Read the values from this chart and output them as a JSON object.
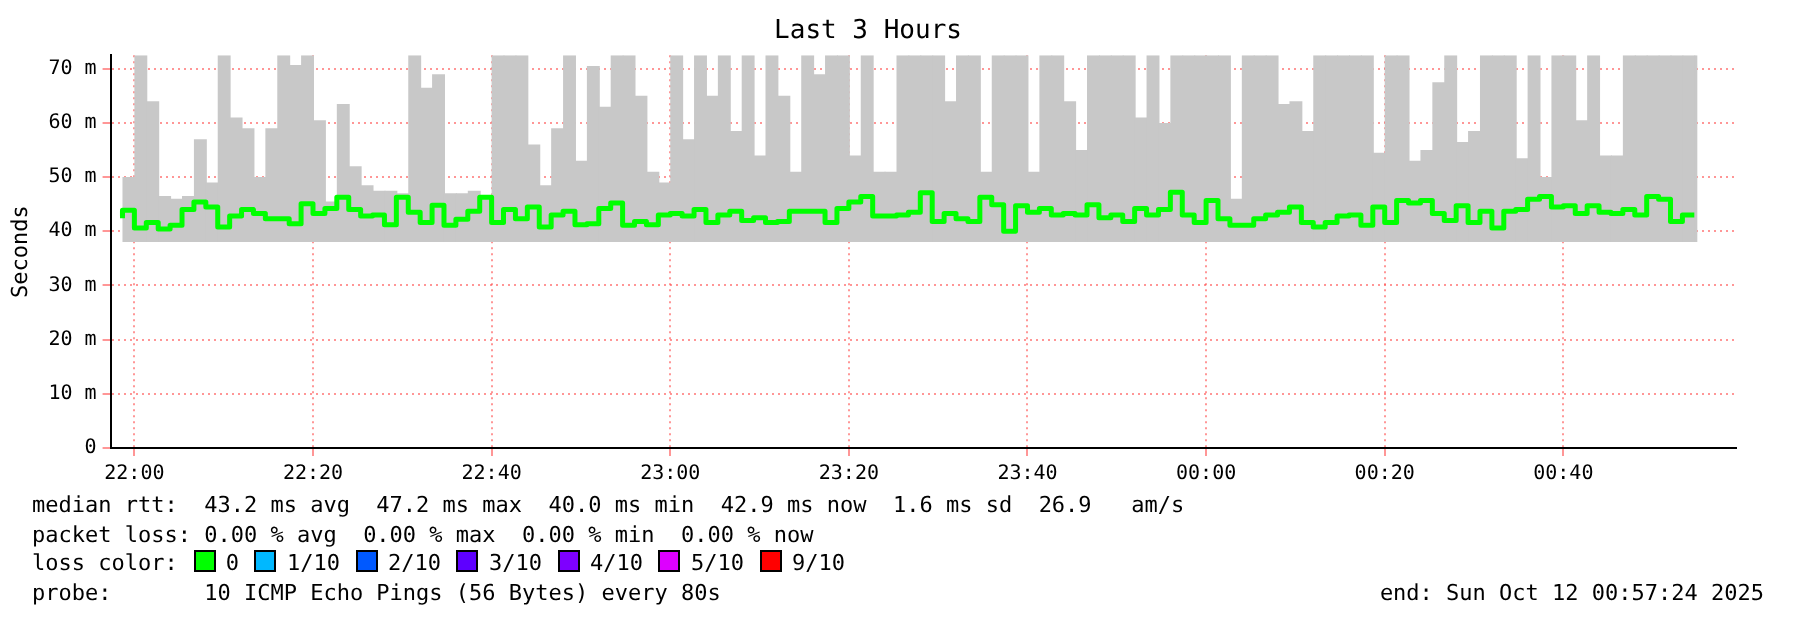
{
  "chart_data": {
    "type": "step",
    "title": "Last 3 Hours",
    "ylabel": "Seconds",
    "legend_title": "loss color:",
    "legend": "bottom",
    "grid": true,
    "xlim": [
      "2025-10-11T21:57:20",
      "2025-10-12T00:59:20"
    ],
    "xticks": [
      {
        "value": "2025-10-11T22:00",
        "label": "22:00"
      },
      {
        "value": "2025-10-11T22:20",
        "label": "22:20"
      },
      {
        "value": "2025-10-11T22:40",
        "label": "22:40"
      },
      {
        "value": "2025-10-11T23:00",
        "label": "23:00"
      },
      {
        "value": "2025-10-11T23:20",
        "label": "23:20"
      },
      {
        "value": "2025-10-11T23:40",
        "label": "23:40"
      },
      {
        "value": "2025-10-12T00:00",
        "label": "00:00"
      },
      {
        "value": "2025-10-12T00:20",
        "label": "00:20"
      },
      {
        "value": "2025-10-12T00:40",
        "label": "00:40"
      }
    ],
    "ylim": [
      0,
      72.5
    ],
    "yticks": [
      0,
      {
        "value": 10,
        "label": "10 m"
      },
      {
        "value": 20,
        "label": "20 m"
      },
      {
        "value": 30,
        "label": "30 m"
      },
      {
        "value": 40,
        "label": "40 m"
      },
      {
        "value": 50,
        "label": "50 m"
      },
      {
        "value": 60,
        "label": "60 m"
      },
      {
        "value": 70,
        "label": "70 m"
      }
    ],
    "x": [
      "2025-10-11T21:58:40",
      "2025-10-11T22:00:00",
      "2025-10-11T22:01:20",
      "2025-10-11T22:02:40",
      "2025-10-11T22:04:00",
      "2025-10-11T22:05:20",
      "2025-10-11T22:06:40",
      "2025-10-11T22:08:00",
      "2025-10-11T22:09:20",
      "2025-10-11T22:10:40",
      "2025-10-11T22:12:00",
      "2025-10-11T22:13:20",
      "2025-10-11T22:14:40",
      "2025-10-11T22:16:00",
      "2025-10-11T22:17:20",
      "2025-10-11T22:18:40",
      "2025-10-11T22:20:00",
      "2025-10-11T22:21:20",
      "2025-10-11T22:22:40",
      "2025-10-11T22:24:00",
      "2025-10-11T22:25:20",
      "2025-10-11T22:26:40",
      "2025-10-11T22:28:00",
      "2025-10-11T22:29:20",
      "2025-10-11T22:30:40",
      "2025-10-11T22:32:00",
      "2025-10-11T22:33:20",
      "2025-10-11T22:34:40",
      "2025-10-11T22:36:00",
      "2025-10-11T22:37:20",
      "2025-10-11T22:38:40",
      "2025-10-11T22:40:00",
      "2025-10-11T22:41:20",
      "2025-10-11T22:42:40",
      "2025-10-11T22:44:00",
      "2025-10-11T22:45:20",
      "2025-10-11T22:46:40",
      "2025-10-11T22:48:00",
      "2025-10-11T22:49:20",
      "2025-10-11T22:50:40",
      "2025-10-11T22:52:00",
      "2025-10-11T22:53:20",
      "2025-10-11T22:54:40",
      "2025-10-11T22:56:00",
      "2025-10-11T22:57:20",
      "2025-10-11T22:58:40",
      "2025-10-11T23:00:00",
      "2025-10-11T23:01:20",
      "2025-10-11T23:02:40",
      "2025-10-11T23:04:00",
      "2025-10-11T23:05:20",
      "2025-10-11T23:06:40",
      "2025-10-11T23:08:00",
      "2025-10-11T23:09:20",
      "2025-10-11T23:10:40",
      "2025-10-11T23:12:00",
      "2025-10-11T23:13:20",
      "2025-10-11T23:14:40",
      "2025-10-11T23:16:00",
      "2025-10-11T23:17:20",
      "2025-10-11T23:18:40",
      "2025-10-11T23:20:00",
      "2025-10-11T23:21:20",
      "2025-10-11T23:22:40",
      "2025-10-11T23:24:00",
      "2025-10-11T23:25:20",
      "2025-10-11T23:26:40",
      "2025-10-11T23:28:00",
      "2025-10-11T23:29:20",
      "2025-10-11T23:30:40",
      "2025-10-11T23:32:00",
      "2025-10-11T23:33:20",
      "2025-10-11T23:34:40",
      "2025-10-11T23:36:00",
      "2025-10-11T23:37:20",
      "2025-10-11T23:38:40",
      "2025-10-11T23:40:00",
      "2025-10-11T23:41:20",
      "2025-10-11T23:42:40",
      "2025-10-11T23:44:00",
      "2025-10-11T23:45:20",
      "2025-10-11T23:46:40",
      "2025-10-11T23:48:00",
      "2025-10-11T23:49:20",
      "2025-10-11T23:50:40",
      "2025-10-11T23:52:00",
      "2025-10-11T23:53:20",
      "2025-10-11T23:54:40",
      "2025-10-11T23:56:00",
      "2025-10-11T23:57:20",
      "2025-10-11T23:58:40",
      "2025-10-12T00:00:00",
      "2025-10-12T00:01:20",
      "2025-10-12T00:02:40",
      "2025-10-12T00:04:00",
      "2025-10-12T00:05:20",
      "2025-10-12T00:06:40",
      "2025-10-12T00:08:00",
      "2025-10-12T00:09:20",
      "2025-10-12T00:10:40",
      "2025-10-12T00:12:00",
      "2025-10-12T00:13:20",
      "2025-10-12T00:14:40",
      "2025-10-12T00:16:00",
      "2025-10-12T00:17:20",
      "2025-10-12T00:18:40",
      "2025-10-12T00:20:00",
      "2025-10-12T00:21:20",
      "2025-10-12T00:22:40",
      "2025-10-12T00:24:00",
      "2025-10-12T00:25:20",
      "2025-10-12T00:26:40",
      "2025-10-12T00:28:00",
      "2025-10-12T00:29:20",
      "2025-10-12T00:30:40",
      "2025-10-12T00:32:00",
      "2025-10-12T00:33:20",
      "2025-10-12T00:34:40",
      "2025-10-12T00:36:00",
      "2025-10-12T00:37:20",
      "2025-10-12T00:38:40",
      "2025-10-12T00:40:00",
      "2025-10-12T00:41:20",
      "2025-10-12T00:42:40",
      "2025-10-12T00:44:00",
      "2025-10-12T00:45:20",
      "2025-10-12T00:46:40",
      "2025-10-12T00:48:00",
      "2025-10-12T00:49:20",
      "2025-10-12T00:50:40",
      "2025-10-12T00:52:00",
      "2025-10-12T00:53:20",
      "2025-10-12T00:54:40"
    ],
    "series": [
      {
        "name": "0",
        "color": "#00ff00",
        "values": [
          42.4,
          43.9,
          40.6,
          41.6,
          40.4,
          41.1,
          44.0,
          45.4,
          44.5,
          40.8,
          42.8,
          44.0,
          43.3,
          42.3,
          42.3,
          41.4,
          45.1,
          43.3,
          44.2,
          46.3,
          44.0,
          42.8,
          43.0,
          41.2,
          46.3,
          43.5,
          41.6,
          44.8,
          41.1,
          42.2,
          43.7,
          46.3,
          41.6,
          44.0,
          42.3,
          44.5,
          40.8,
          43.0,
          43.7,
          41.2,
          41.4,
          44.2,
          45.2,
          41.1,
          41.8,
          41.2,
          43.0,
          43.3,
          42.8,
          44.0,
          41.6,
          43.0,
          43.7,
          42.0,
          42.5,
          41.6,
          41.8,
          43.7,
          43.7,
          43.7,
          41.6,
          44.2,
          45.4,
          46.4,
          42.8,
          42.8,
          43.0,
          43.5,
          47.1,
          41.8,
          43.3,
          42.3,
          41.8,
          46.3,
          44.9,
          40.0,
          44.7,
          43.5,
          44.2,
          43.0,
          43.3,
          43.0,
          44.9,
          42.5,
          43.0,
          41.8,
          44.2,
          43.0,
          44.0,
          47.2,
          43.0,
          41.6,
          45.7,
          42.3,
          41.1,
          41.1,
          42.3,
          43.0,
          43.5,
          44.5,
          41.6,
          40.8,
          41.6,
          42.8,
          43.0,
          41.1,
          44.5,
          41.6,
          45.7,
          45.2,
          45.7,
          43.3,
          42.0,
          44.7,
          41.6,
          43.7,
          40.6,
          43.7,
          44.0,
          45.9,
          46.4,
          44.5,
          44.7,
          43.3,
          44.7,
          43.5,
          43.3,
          44.0,
          43.0,
          46.4,
          45.9,
          41.8,
          43.0
        ],
        "lower": [
          38,
          38,
          38,
          38,
          38,
          38,
          38,
          38,
          38,
          38,
          38,
          38,
          38,
          38,
          38,
          38,
          38,
          38,
          38,
          38,
          38,
          38,
          38,
          38,
          38,
          38,
          38,
          38,
          38,
          38,
          38,
          38,
          38,
          38,
          38,
          38,
          38,
          38,
          38,
          38,
          38,
          38,
          38,
          38,
          38,
          38,
          38,
          38,
          38,
          38,
          38,
          38,
          38,
          38,
          38,
          38,
          38,
          38,
          38,
          38,
          38,
          38,
          38,
          38,
          38,
          38,
          38,
          38,
          38,
          38,
          38,
          38,
          38,
          38,
          38,
          38,
          38,
          38,
          38,
          38,
          38,
          38,
          38,
          38,
          38,
          38,
          38,
          38,
          38,
          38,
          38,
          38,
          38,
          38,
          38,
          38,
          38,
          38,
          38,
          38,
          38,
          38,
          38,
          38,
          38,
          38,
          38,
          38,
          38,
          38,
          38,
          38,
          38,
          38,
          38,
          38,
          38,
          38,
          38,
          38,
          38,
          38,
          38,
          38,
          38,
          38,
          38,
          38,
          38,
          38,
          38,
          38,
          38
        ],
        "upper": [
          50,
          72.5,
          64,
          46.5,
          46,
          46.5,
          57,
          49,
          72.5,
          61,
          59,
          50,
          59,
          72.5,
          70.7,
          72.5,
          60.5,
          45.5,
          63.5,
          52,
          48.5,
          47.5,
          47.5,
          47,
          72.5,
          66.5,
          69,
          47,
          47,
          47.5,
          46.5,
          72.5,
          72.5,
          72.5,
          56,
          48.5,
          59,
          72.5,
          53,
          70.5,
          63,
          72.5,
          72.5,
          65,
          51,
          49,
          72.5,
          57,
          72.5,
          65,
          72.5,
          58.5,
          72.5,
          54,
          72.5,
          65,
          51,
          72.5,
          69,
          72.5,
          72.5,
          54,
          72.5,
          51,
          51,
          72.5,
          72.5,
          72.5,
          72.5,
          64,
          72.5,
          72.5,
          51,
          72.5,
          72.5,
          72.5,
          51,
          72.5,
          72.5,
          64,
          55,
          72.5,
          72.5,
          72.5,
          72.5,
          61,
          72.5,
          60,
          72.5,
          72.5,
          72.5,
          72.5,
          72.5,
          46,
          72.5,
          72.5,
          72.5,
          63.5,
          64,
          58.5,
          72.5,
          72.5,
          72.5,
          72.5,
          72.5,
          54.5,
          72.5,
          72.5,
          53,
          55,
          67.5,
          72.5,
          56.5,
          58.5,
          72.5,
          72.5,
          72.5,
          53.5,
          72.5,
          50,
          72.5,
          72.5,
          60.5,
          72.5,
          54,
          54,
          72.5,
          72.5,
          72.5,
          72.5,
          72.5,
          72.5,
          72.5
        ]
      },
      {
        "name": "1/10",
        "color": "#00b8ff",
        "values": [
          null,
          null,
          null,
          null,
          null,
          null,
          null,
          null,
          null,
          null,
          null,
          null,
          null,
          null,
          null,
          null,
          null,
          null,
          null,
          null,
          null,
          null,
          null,
          null,
          null,
          null,
          null,
          null,
          null,
          null,
          null,
          null,
          null,
          null,
          null,
          null,
          null,
          null,
          null,
          null,
          null,
          null,
          null,
          null,
          null,
          null,
          null,
          null,
          null,
          null,
          null,
          null,
          null,
          null,
          null,
          null,
          null,
          null,
          null,
          null,
          null,
          null,
          null,
          null,
          null,
          null,
          null,
          null,
          null,
          null,
          null,
          null,
          null,
          null,
          null,
          null,
          null,
          null,
          null,
          null,
          null,
          null,
          null,
          null,
          null,
          null,
          null,
          null,
          null,
          null,
          null,
          null,
          null,
          null,
          null,
          null,
          null,
          null,
          null,
          null,
          null,
          null,
          null,
          null,
          null,
          null,
          null,
          null,
          null,
          null,
          null,
          null,
          null,
          null,
          null,
          null,
          null,
          null,
          null,
          null,
          null,
          null,
          null,
          null,
          null,
          null,
          null,
          null,
          null,
          null,
          null,
          null,
          null
        ]
      },
      {
        "name": "2/10",
        "color": "#0059ff",
        "values": [
          null,
          null,
          null,
          null,
          null,
          null,
          null,
          null,
          null,
          null,
          null,
          null,
          null,
          null,
          null,
          null,
          null,
          null,
          null,
          null,
          null,
          null,
          null,
          null,
          null,
          null,
          null,
          null,
          null,
          null,
          null,
          null,
          null,
          null,
          null,
          null,
          null,
          null,
          null,
          null,
          null,
          null,
          null,
          null,
          null,
          null,
          null,
          null,
          null,
          null,
          null,
          null,
          null,
          null,
          null,
          null,
          null,
          null,
          null,
          null,
          null,
          null,
          null,
          null,
          null,
          null,
          null,
          null,
          null,
          null,
          null,
          null,
          null,
          null,
          null,
          null,
          null,
          null,
          null,
          null,
          null,
          null,
          null,
          null,
          null,
          null,
          null,
          null,
          null,
          null,
          null,
          null,
          null,
          null,
          null,
          null,
          null,
          null,
          null,
          null,
          null,
          null,
          null,
          null,
          null,
          null,
          null,
          null,
          null,
          null,
          null,
          null,
          null,
          null,
          null,
          null,
          null,
          null,
          null,
          null,
          null,
          null,
          null,
          null,
          null,
          null,
          null,
          null,
          null,
          null,
          null,
          null,
          null
        ]
      },
      {
        "name": "3/10",
        "color": "#5e00ff",
        "values": [
          null,
          null,
          null,
          null,
          null,
          null,
          null,
          null,
          null,
          null,
          null,
          null,
          null,
          null,
          null,
          null,
          null,
          null,
          null,
          null,
          null,
          null,
          null,
          null,
          null,
          null,
          null,
          null,
          null,
          null,
          null,
          null,
          null,
          null,
          null,
          null,
          null,
          null,
          null,
          null,
          null,
          null,
          null,
          null,
          null,
          null,
          null,
          null,
          null,
          null,
          null,
          null,
          null,
          null,
          null,
          null,
          null,
          null,
          null,
          null,
          null,
          null,
          null,
          null,
          null,
          null,
          null,
          null,
          null,
          null,
          null,
          null,
          null,
          null,
          null,
          null,
          null,
          null,
          null,
          null,
          null,
          null,
          null,
          null,
          null,
          null,
          null,
          null,
          null,
          null,
          null,
          null,
          null,
          null,
          null,
          null,
          null,
          null,
          null,
          null,
          null,
          null,
          null,
          null,
          null,
          null,
          null,
          null,
          null,
          null,
          null,
          null,
          null,
          null,
          null,
          null,
          null,
          null,
          null,
          null,
          null,
          null,
          null,
          null,
          null,
          null,
          null,
          null,
          null,
          null,
          null,
          null,
          null
        ]
      },
      {
        "name": "4/10",
        "color": "#7e00ff",
        "values": [
          null,
          null,
          null,
          null,
          null,
          null,
          null,
          null,
          null,
          null,
          null,
          null,
          null,
          null,
          null,
          null,
          null,
          null,
          null,
          null,
          null,
          null,
          null,
          null,
          null,
          null,
          null,
          null,
          null,
          null,
          null,
          null,
          null,
          null,
          null,
          null,
          null,
          null,
          null,
          null,
          null,
          null,
          null,
          null,
          null,
          null,
          null,
          null,
          null,
          null,
          null,
          null,
          null,
          null,
          null,
          null,
          null,
          null,
          null,
          null,
          null,
          null,
          null,
          null,
          null,
          null,
          null,
          null,
          null,
          null,
          null,
          null,
          null,
          null,
          null,
          null,
          null,
          null,
          null,
          null,
          null,
          null,
          null,
          null,
          null,
          null,
          null,
          null,
          null,
          null,
          null,
          null,
          null,
          null,
          null,
          null,
          null,
          null,
          null,
          null,
          null,
          null,
          null,
          null,
          null,
          null,
          null,
          null,
          null,
          null,
          null,
          null,
          null,
          null,
          null,
          null,
          null,
          null,
          null,
          null,
          null,
          null,
          null,
          null,
          null,
          null,
          null,
          null,
          null,
          null,
          null,
          null,
          null
        ]
      },
      {
        "name": "5/10",
        "color": "#dd00ff",
        "values": [
          null,
          null,
          null,
          null,
          null,
          null,
          null,
          null,
          null,
          null,
          null,
          null,
          null,
          null,
          null,
          null,
          null,
          null,
          null,
          null,
          null,
          null,
          null,
          null,
          null,
          null,
          null,
          null,
          null,
          null,
          null,
          null,
          null,
          null,
          null,
          null,
          null,
          null,
          null,
          null,
          null,
          null,
          null,
          null,
          null,
          null,
          null,
          null,
          null,
          null,
          null,
          null,
          null,
          null,
          null,
          null,
          null,
          null,
          null,
          null,
          null,
          null,
          null,
          null,
          null,
          null,
          null,
          null,
          null,
          null,
          null,
          null,
          null,
          null,
          null,
          null,
          null,
          null,
          null,
          null,
          null,
          null,
          null,
          null,
          null,
          null,
          null,
          null,
          null,
          null,
          null,
          null,
          null,
          null,
          null,
          null,
          null,
          null,
          null,
          null,
          null,
          null,
          null,
          null,
          null,
          null,
          null,
          null,
          null,
          null,
          null,
          null,
          null,
          null,
          null,
          null,
          null,
          null,
          null,
          null,
          null,
          null,
          null,
          null,
          null,
          null,
          null,
          null,
          null,
          null,
          null,
          null,
          null
        ]
      },
      {
        "name": "9/10",
        "color": "#ff0000",
        "values": [
          null,
          null,
          null,
          null,
          null,
          null,
          null,
          null,
          null,
          null,
          null,
          null,
          null,
          null,
          null,
          null,
          null,
          null,
          null,
          null,
          null,
          null,
          null,
          null,
          null,
          null,
          null,
          null,
          null,
          null,
          null,
          null,
          null,
          null,
          null,
          null,
          null,
          null,
          null,
          null,
          null,
          null,
          null,
          null,
          null,
          null,
          null,
          null,
          null,
          null,
          null,
          null,
          null,
          null,
          null,
          null,
          null,
          null,
          null,
          null,
          null,
          null,
          null,
          null,
          null,
          null,
          null,
          null,
          null,
          null,
          null,
          null,
          null,
          null,
          null,
          null,
          null,
          null,
          null,
          null,
          null,
          null,
          null,
          null,
          null,
          null,
          null,
          null,
          null,
          null,
          null,
          null,
          null,
          null,
          null,
          null,
          null,
          null,
          null,
          null,
          null,
          null,
          null,
          null,
          null,
          null,
          null,
          null,
          null,
          null,
          null,
          null,
          null,
          null,
          null,
          null,
          null,
          null,
          null,
          null,
          null,
          null,
          null,
          null,
          null,
          null,
          null,
          null,
          null,
          null,
          null,
          null,
          null
        ]
      }
    ],
    "annotations": [
      "median rtt:  43.2 ms avg  47.2 ms max  40.0 ms min  42.9 ms now  1.6 ms sd  26.9   am/s",
      "packet loss: 0.00 % avg  0.00 % max  0.00 % min  0.00 % now",
      "probe:       10 ICMP Echo Pings (56 Bytes) every 80s",
      "end: Sun Oct 12 00:57:24 2025"
    ]
  }
}
